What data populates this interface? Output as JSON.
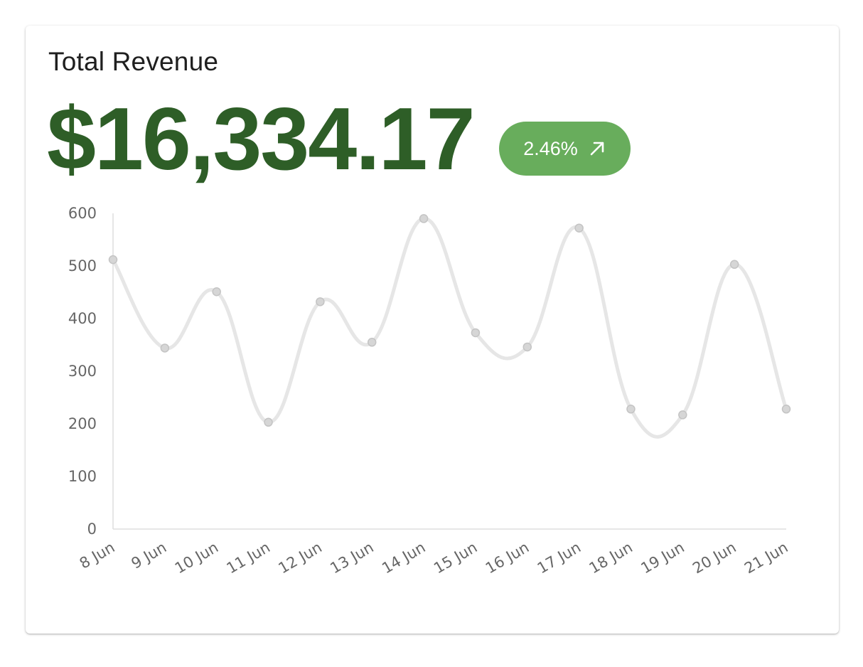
{
  "card": {
    "title": "Total Revenue",
    "amount": "$16,334.17",
    "badge": {
      "text": "2.46%",
      "icon": "arrow-up-right-icon",
      "color": "#68ad5c"
    }
  },
  "chart_data": {
    "type": "line",
    "categories": [
      "8 Jun",
      "9 Jun",
      "10 Jun",
      "11 Jun",
      "12 Jun",
      "13 Jun",
      "14 Jun",
      "15 Jun",
      "16 Jun",
      "17 Jun",
      "18 Jun",
      "19 Jun",
      "20 Jun",
      "21 Jun"
    ],
    "series": [
      {
        "values": [
          512,
          344,
          451,
          203,
          432,
          355,
          590,
          373,
          346,
          572,
          228,
          217,
          503,
          228
        ],
        "color": "#e6e6e6"
      }
    ],
    "yticks": [
      "0",
      "100",
      "200",
      "300",
      "400",
      "500",
      "600"
    ],
    "ylim": [
      0,
      600
    ],
    "grid": false,
    "smooth": true
  }
}
